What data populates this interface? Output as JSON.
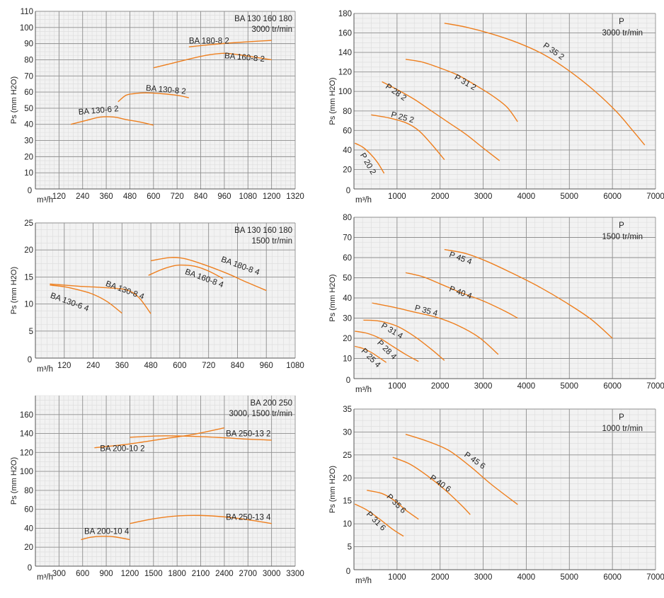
{
  "chart_data": [
    {
      "type": "line",
      "ylabel": "Ps (mm H2O)",
      "xlabel": "m³/h",
      "annotation": [
        "BA 130 160 180",
        "3000 tr/min"
      ],
      "xlim": [
        0,
        1320
      ],
      "ylim": [
        0,
        110
      ],
      "xticks": [
        120,
        240,
        360,
        480,
        600,
        720,
        840,
        960,
        1080,
        1200,
        1320
      ],
      "yticks": [
        10,
        20,
        30,
        40,
        50,
        60,
        70,
        80,
        90,
        100,
        110
      ],
      "grid": true,
      "series": [
        {
          "name": "BA 130-6 2",
          "points": [
            [
              180,
              40
            ],
            [
              260,
              42.5
            ],
            [
              330,
              44.5
            ],
            [
              400,
              44.5
            ],
            [
              460,
              43
            ],
            [
              530,
              41.5
            ],
            [
              600,
              39.5
            ]
          ],
          "label_at": [
            220,
            46
          ],
          "label_angle": -5
        },
        {
          "name": "BA 130-8 2",
          "points": [
            [
              420,
              54
            ],
            [
              460,
              58
            ],
            [
              500,
              59
            ],
            [
              560,
              59.5
            ],
            [
              640,
              59
            ],
            [
              720,
              58
            ],
            [
              780,
              56.5
            ]
          ],
          "label_at": [
            560,
            61
          ],
          "label_angle": 5
        },
        {
          "name": "BA 160-8 2",
          "points": [
            [
              600,
              75
            ],
            [
              700,
              78
            ],
            [
              800,
              81
            ],
            [
              880,
              83
            ],
            [
              960,
              84
            ],
            [
              1040,
              83
            ],
            [
              1120,
              81.5
            ],
            [
              1200,
              80
            ]
          ],
          "label_at": [
            960,
            81
          ],
          "label_angle": 5
        },
        {
          "name": "BA 180-8 2",
          "points": [
            [
              780,
              88
            ],
            [
              900,
              89.5
            ],
            [
              1000,
              90.5
            ],
            [
              1100,
              91.3
            ],
            [
              1200,
              92
            ]
          ],
          "label_at": [
            780,
            90
          ],
          "label_angle": 0
        }
      ]
    },
    {
      "type": "line",
      "ylabel": "Ps (mm H2O)",
      "xlabel": "m³/h",
      "annotation": [
        "P",
        "3000 tr/min"
      ],
      "xlim": [
        0,
        7000
      ],
      "ylim": [
        0,
        180
      ],
      "xticks": [
        1000,
        2000,
        3000,
        4000,
        5000,
        6000,
        7000
      ],
      "yticks": [
        20,
        40,
        60,
        80,
        100,
        120,
        140,
        160,
        180
      ],
      "grid": true,
      "series": [
        {
          "name": "P 20 2",
          "points": [
            [
              20,
              47
            ],
            [
              200,
              43
            ],
            [
              380,
              36
            ],
            [
              550,
              27
            ],
            [
              700,
              16
            ]
          ],
          "label_at": [
            140,
            35
          ],
          "label_angle": 60
        },
        {
          "name": "P 25 2",
          "points": [
            [
              400,
              76
            ],
            [
              800,
              73
            ],
            [
              1200,
              68
            ],
            [
              1500,
              60
            ],
            [
              1800,
              46
            ],
            [
              2100,
              30
            ]
          ],
          "label_at": [
            850,
            74
          ],
          "label_angle": 15
        },
        {
          "name": "P 28 2",
          "points": [
            [
              650,
              110
            ],
            [
              1000,
              102
            ],
            [
              1400,
              92
            ],
            [
              1800,
              80
            ],
            [
              2200,
              68
            ],
            [
              2600,
              56
            ],
            [
              3000,
              42
            ],
            [
              3380,
              29
            ]
          ],
          "label_at": [
            720,
            104
          ],
          "label_angle": 35
        },
        {
          "name": "P 31 2",
          "points": [
            [
              1200,
              133
            ],
            [
              1600,
              130
            ],
            [
              2000,
              124
            ],
            [
              2400,
              117
            ],
            [
              2800,
              107
            ],
            [
              3200,
              96
            ],
            [
              3550,
              84
            ],
            [
              3800,
              69
            ]
          ],
          "label_at": [
            2320,
            113
          ],
          "label_angle": 30
        },
        {
          "name": "P 35 2",
          "points": [
            [
              2100,
              170
            ],
            [
              2600,
              166
            ],
            [
              3200,
              159
            ],
            [
              3800,
              150
            ],
            [
              4400,
              138
            ],
            [
              5000,
              121
            ],
            [
              5600,
              100
            ],
            [
              6100,
              79
            ],
            [
              6450,
              61
            ],
            [
              6750,
              45
            ]
          ],
          "label_at": [
            4380,
            146
          ],
          "label_angle": 35
        }
      ]
    },
    {
      "type": "line",
      "ylabel": "Ps (mm H2O)",
      "xlabel": "m³/h",
      "annotation": [
        "BA 130 160 180",
        "1500 tr/min"
      ],
      "xlim": [
        0,
        1080
      ],
      "ylim": [
        0,
        25
      ],
      "xticks": [
        120,
        240,
        360,
        480,
        600,
        720,
        840,
        960,
        1080
      ],
      "yticks": [
        5,
        10,
        15,
        20,
        25
      ],
      "grid": true,
      "series": [
        {
          "name": "BA 130-6 4",
          "points": [
            [
              60,
              13.5
            ],
            [
              120,
              13.2
            ],
            [
              180,
              12.6
            ],
            [
              240,
              11.8
            ],
            [
              300,
              10.4
            ],
            [
              360,
              8.3
            ]
          ],
          "label_at": [
            60,
            11.2
          ],
          "label_angle": 20
        },
        {
          "name": "BA 130-8 4",
          "points": [
            [
              60,
              13.7
            ],
            [
              180,
              13.3
            ],
            [
              300,
              13
            ],
            [
              380,
              12.6
            ],
            [
              430,
              11.2
            ],
            [
              480,
              8.2
            ]
          ],
          "label_at": [
            290,
            13.4
          ],
          "label_angle": 20
        },
        {
          "name": "BA 160-8 4",
          "points": [
            [
              470,
              15.3
            ],
            [
              520,
              16.3
            ],
            [
              560,
              16.9
            ],
            [
              600,
              17.2
            ],
            [
              660,
              17
            ],
            [
              720,
              16.1
            ],
            [
              780,
              14.7
            ]
          ],
          "label_at": [
            620,
            15.6
          ],
          "label_angle": 20
        },
        {
          "name": "BA 180-8 4",
          "points": [
            [
              480,
              18
            ],
            [
              560,
              18.6
            ],
            [
              620,
              18.4
            ],
            [
              700,
              17.3
            ],
            [
              800,
              15.6
            ],
            [
              880,
              14
            ],
            [
              960,
              12.5
            ]
          ],
          "label_at": [
            770,
            17.9
          ],
          "label_angle": 20
        }
      ]
    },
    {
      "type": "line",
      "ylabel": "Ps (mm H2O)",
      "xlabel": "m³/h",
      "annotation": [
        "P",
        "1500 tr/min"
      ],
      "xlim": [
        0,
        7000
      ],
      "ylim": [
        0,
        80
      ],
      "xticks": [
        1000,
        2000,
        3000,
        4000,
        5000,
        6000,
        7000
      ],
      "yticks": [
        10,
        20,
        30,
        40,
        50,
        60,
        70,
        80
      ],
      "grid": true,
      "series": [
        {
          "name": "P 25 4",
          "points": [
            [
              20,
              16
            ],
            [
              200,
              15
            ],
            [
              400,
              13
            ],
            [
              580,
              10.5
            ],
            [
              750,
              8
            ]
          ],
          "label_at": [
            160,
            13.5
          ],
          "label_angle": 45
        },
        {
          "name": "P 28 4",
          "points": [
            [
              20,
              23.5
            ],
            [
              300,
              22.5
            ],
            [
              600,
              20
            ],
            [
              900,
              16
            ],
            [
              1200,
              12
            ],
            [
              1500,
              8.5
            ]
          ],
          "label_at": [
            530,
            17.5
          ],
          "label_angle": 45
        },
        {
          "name": "P 31 4",
          "points": [
            [
              220,
              29
            ],
            [
              600,
              28.5
            ],
            [
              1000,
              26
            ],
            [
              1400,
              21
            ],
            [
              1800,
              14.5
            ],
            [
              2100,
              9
            ]
          ],
          "label_at": [
            620,
            25.5
          ],
          "label_angle": 30
        },
        {
          "name": "P 35 4",
          "points": [
            [
              420,
              37.5
            ],
            [
              900,
              35.5
            ],
            [
              1400,
              33
            ],
            [
              1900,
              30.5
            ],
            [
              2400,
              26.5
            ],
            [
              2900,
              20.5
            ],
            [
              3350,
              12
            ]
          ],
          "label_at": [
            1400,
            34
          ],
          "label_angle": 15
        },
        {
          "name": "P 40 4",
          "points": [
            [
              1200,
              52.5
            ],
            [
              1600,
              50.5
            ],
            [
              2000,
              47
            ],
            [
              2500,
              42.5
            ],
            [
              3000,
              38.5
            ],
            [
              3500,
              33.5
            ],
            [
              3800,
              30
            ]
          ],
          "label_at": [
            2200,
            43.5
          ],
          "label_angle": 20
        },
        {
          "name": "P 45 4",
          "points": [
            [
              2100,
              64
            ],
            [
              2600,
              62
            ],
            [
              3100,
              58
            ],
            [
              3700,
              52
            ],
            [
              4300,
              45.5
            ],
            [
              4900,
              38
            ],
            [
              5500,
              29.5
            ],
            [
              6000,
              20
            ]
          ],
          "label_at": [
            2200,
            60.5
          ],
          "label_angle": 20
        }
      ]
    },
    {
      "type": "line",
      "ylabel": "Ps (mm H2O)",
      "xlabel": "m³/h",
      "annotation": [
        "BA 200 250",
        "3000, 1500 tr/min"
      ],
      "xlim": [
        0,
        3300
      ],
      "ylim": [
        0,
        180
      ],
      "xticks": [
        300,
        600,
        900,
        1200,
        1500,
        1800,
        2100,
        2400,
        2700,
        3000,
        3300
      ],
      "yticks": [
        20,
        40,
        60,
        80,
        100,
        120,
        140,
        160
      ],
      "grid": true,
      "series": [
        {
          "name": "BA 200-10 2",
          "points": [
            [
              750,
              125
            ],
            [
              1200,
              129
            ],
            [
              1600,
              134
            ],
            [
              2000,
              139
            ],
            [
              2400,
              146
            ]
          ],
          "label_at": [
            820,
            121.5
          ],
          "label_angle": 0
        },
        {
          "name": "BA 250-13 2",
          "points": [
            [
              1200,
              136
            ],
            [
              1600,
              137.5
            ],
            [
              2000,
              137
            ],
            [
              2400,
              135.5
            ],
            [
              2700,
              134
            ],
            [
              3000,
              133
            ]
          ],
          "label_at": [
            2420,
            137
          ],
          "label_angle": 0
        },
        {
          "name": "BA 200-10 4",
          "points": [
            [
              580,
              28
            ],
            [
              700,
              30.5
            ],
            [
              850,
              31.5
            ],
            [
              1000,
              31
            ],
            [
              1200,
              28
            ]
          ],
          "label_at": [
            620,
            34
          ],
          "label_angle": 0
        },
        {
          "name": "BA 250-13 4",
          "points": [
            [
              1200,
              45
            ],
            [
              1500,
              50
            ],
            [
              1800,
              53
            ],
            [
              2100,
              53.5
            ],
            [
              2400,
              52
            ],
            [
              2700,
              49
            ],
            [
              3000,
              45
            ]
          ],
          "label_at": [
            2420,
            49
          ],
          "label_angle": 0
        }
      ]
    },
    {
      "type": "line",
      "ylabel": "Ps (mm H2O)",
      "xlabel": "m³/h",
      "annotation": [
        "P",
        "1000 tr/min"
      ],
      "xlim": [
        0,
        7000
      ],
      "ylim": [
        0,
        35
      ],
      "xticks": [
        1000,
        2000,
        3000,
        4000,
        5000,
        6000,
        7000
      ],
      "yticks": [
        5,
        10,
        15,
        20,
        25,
        30,
        35
      ],
      "grid": true,
      "series": [
        {
          "name": "P 31 6",
          "points": [
            [
              20,
              14.3
            ],
            [
              300,
              13
            ],
            [
              600,
              11
            ],
            [
              900,
              8.8
            ],
            [
              1150,
              7.3
            ]
          ],
          "label_at": [
            280,
            12
          ],
          "label_angle": 45
        },
        {
          "name": "P 35 6",
          "points": [
            [
              300,
              17.3
            ],
            [
              650,
              16.6
            ],
            [
              950,
              15
            ],
            [
              1200,
              13
            ],
            [
              1500,
              11
            ]
          ],
          "label_at": [
            750,
            15.8
          ],
          "label_angle": 45
        },
        {
          "name": "P 40 6",
          "points": [
            [
              900,
              24.5
            ],
            [
              1300,
              23
            ],
            [
              1700,
              20.5
            ],
            [
              2100,
              17.5
            ],
            [
              2500,
              14
            ],
            [
              2700,
              12
            ]
          ],
          "label_at": [
            1750,
            19.8
          ],
          "label_angle": 35
        },
        {
          "name": "P 45 6",
          "points": [
            [
              1200,
              29.5
            ],
            [
              1700,
              28
            ],
            [
              2200,
              26
            ],
            [
              2700,
              22.5
            ],
            [
              3200,
              18.5
            ],
            [
              3800,
              14.2
            ]
          ],
          "label_at": [
            2550,
            24.8
          ],
          "label_angle": 35
        }
      ]
    }
  ]
}
